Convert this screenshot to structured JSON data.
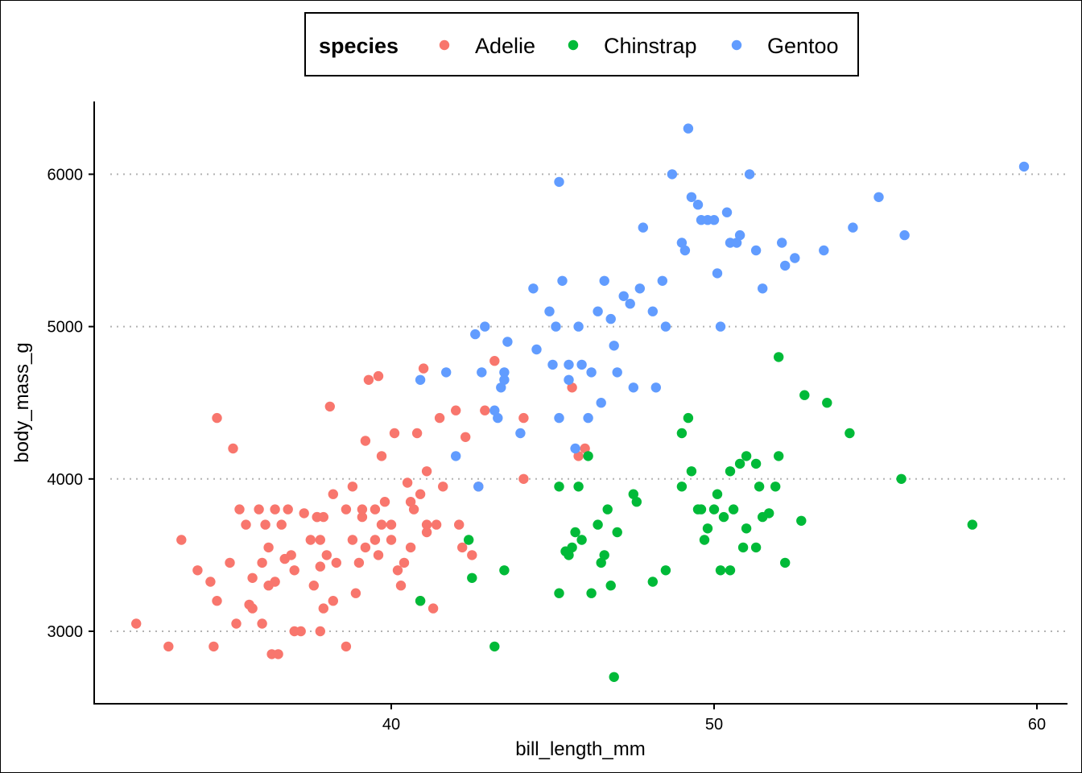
{
  "chart_data": {
    "type": "scatter",
    "xlabel": "bill_length_mm",
    "ylabel": "body_mass_g",
    "xlim": [
      31.6,
      60.7
    ],
    "ylim": [
      2570,
      6480
    ],
    "xticks": [
      40,
      50,
      60
    ],
    "yticks": [
      3000,
      4000,
      5000,
      6000
    ],
    "grid": "horizontal dotted at y ticks",
    "legend": {
      "title": "species",
      "placement": "top"
    },
    "series": [
      {
        "name": "Adelie",
        "color": "#F8766D",
        "points": [
          [
            32.1,
            3050
          ],
          [
            33.1,
            2900
          ],
          [
            33.5,
            3600
          ],
          [
            34.0,
            3400
          ],
          [
            34.4,
            3325
          ],
          [
            34.5,
            2900
          ],
          [
            34.6,
            4400
          ],
          [
            34.6,
            3200
          ],
          [
            35.0,
            3450
          ],
          [
            35.1,
            4200
          ],
          [
            35.2,
            3050
          ],
          [
            35.3,
            3800
          ],
          [
            35.5,
            3700
          ],
          [
            35.6,
            3175
          ],
          [
            35.7,
            3350
          ],
          [
            35.7,
            3150
          ],
          [
            35.9,
            3800
          ],
          [
            36.0,
            3450
          ],
          [
            36.0,
            3050
          ],
          [
            36.1,
            3700
          ],
          [
            36.2,
            3300
          ],
          [
            36.2,
            3550
          ],
          [
            36.3,
            2850
          ],
          [
            36.4,
            3800
          ],
          [
            36.4,
            3325
          ],
          [
            36.5,
            2850
          ],
          [
            36.6,
            3700
          ],
          [
            36.7,
            3475
          ],
          [
            36.8,
            3800
          ],
          [
            36.9,
            3500
          ],
          [
            37.0,
            3000
          ],
          [
            37.0,
            3400
          ],
          [
            37.2,
            3000
          ],
          [
            37.3,
            3775
          ],
          [
            37.5,
            3600
          ],
          [
            37.6,
            3300
          ],
          [
            37.7,
            3750
          ],
          [
            37.8,
            3000
          ],
          [
            37.8,
            3600
          ],
          [
            37.8,
            3425
          ],
          [
            37.9,
            3150
          ],
          [
            37.9,
            3750
          ],
          [
            38.0,
            3500
          ],
          [
            38.1,
            4475
          ],
          [
            38.2,
            3900
          ],
          [
            38.2,
            3200
          ],
          [
            38.3,
            3450
          ],
          [
            38.6,
            2900
          ],
          [
            38.6,
            3800
          ],
          [
            38.8,
            3950
          ],
          [
            38.8,
            3600
          ],
          [
            38.9,
            3250
          ],
          [
            39.0,
            3450
          ],
          [
            39.1,
            3750
          ],
          [
            39.2,
            4250
          ],
          [
            39.2,
            3550
          ],
          [
            39.5,
            3800
          ],
          [
            39.6,
            3500
          ],
          [
            39.6,
            4675
          ],
          [
            39.7,
            3700
          ],
          [
            39.7,
            4150
          ],
          [
            39.8,
            3850
          ],
          [
            40.0,
            3700
          ],
          [
            40.1,
            4300
          ],
          [
            40.2,
            3400
          ],
          [
            40.3,
            3300
          ],
          [
            40.4,
            3450
          ],
          [
            40.5,
            3975
          ],
          [
            40.6,
            3850
          ],
          [
            40.7,
            3800
          ],
          [
            40.8,
            4300
          ],
          [
            40.9,
            3900
          ],
          [
            40.9,
            3200
          ],
          [
            41.0,
            4725
          ],
          [
            41.1,
            4050
          ],
          [
            41.1,
            3700
          ],
          [
            41.3,
            3150
          ],
          [
            41.4,
            3700
          ],
          [
            41.5,
            4400
          ],
          [
            41.6,
            3950
          ],
          [
            42.0,
            4450
          ],
          [
            42.1,
            3700
          ],
          [
            42.2,
            3550
          ],
          [
            42.3,
            4275
          ],
          [
            42.5,
            3500
          ],
          [
            42.7,
            3950
          ],
          [
            42.9,
            4450
          ],
          [
            43.2,
            4775
          ],
          [
            44.1,
            4000
          ],
          [
            44.1,
            4400
          ],
          [
            45.6,
            4600
          ],
          [
            45.8,
            4150
          ],
          [
            46.0,
            4200
          ],
          [
            39.1,
            3800
          ],
          [
            39.3,
            4650
          ],
          [
            40.0,
            3600
          ],
          [
            41.1,
            3650
          ],
          [
            37.7,
            3750
          ],
          [
            39.5,
            3600
          ],
          [
            40.6,
            3550
          ]
        ]
      },
      {
        "name": "Chinstrap",
        "color": "#00BA38",
        "points": [
          [
            40.9,
            3200
          ],
          [
            42.4,
            3600
          ],
          [
            42.5,
            3350
          ],
          [
            43.2,
            2900
          ],
          [
            43.5,
            3400
          ],
          [
            45.2,
            3950
          ],
          [
            45.2,
            3250
          ],
          [
            45.4,
            3525
          ],
          [
            45.5,
            3500
          ],
          [
            45.6,
            3550
          ],
          [
            45.7,
            3650
          ],
          [
            45.9,
            3600
          ],
          [
            46.1,
            4150
          ],
          [
            46.2,
            3250
          ],
          [
            46.4,
            3700
          ],
          [
            46.5,
            3450
          ],
          [
            46.6,
            3500
          ],
          [
            46.7,
            3800
          ],
          [
            46.8,
            3300
          ],
          [
            46.9,
            2700
          ],
          [
            47.0,
            3650
          ],
          [
            47.5,
            3900
          ],
          [
            47.6,
            3850
          ],
          [
            48.1,
            3325
          ],
          [
            48.5,
            3400
          ],
          [
            49.0,
            3950
          ],
          [
            49.0,
            4300
          ],
          [
            49.2,
            4400
          ],
          [
            49.3,
            4050
          ],
          [
            49.5,
            3800
          ],
          [
            49.6,
            3800
          ],
          [
            49.7,
            3600
          ],
          [
            49.8,
            3675
          ],
          [
            50.1,
            3900
          ],
          [
            50.2,
            3400
          ],
          [
            50.3,
            3750
          ],
          [
            50.5,
            3400
          ],
          [
            50.5,
            4050
          ],
          [
            50.6,
            3800
          ],
          [
            50.8,
            4100
          ],
          [
            51.0,
            3675
          ],
          [
            51.3,
            3550
          ],
          [
            51.3,
            4100
          ],
          [
            51.4,
            3950
          ],
          [
            51.5,
            3750
          ],
          [
            51.7,
            3775
          ],
          [
            51.9,
            3950
          ],
          [
            52.0,
            4800
          ],
          [
            52.0,
            4150
          ],
          [
            52.2,
            3450
          ],
          [
            52.7,
            3725
          ],
          [
            52.8,
            4550
          ],
          [
            53.5,
            4500
          ],
          [
            54.2,
            4300
          ],
          [
            55.8,
            4000
          ],
          [
            58.0,
            3700
          ],
          [
            50.9,
            3550
          ],
          [
            45.8,
            3950
          ],
          [
            50.0,
            3800
          ],
          [
            51.0,
            4150
          ]
        ]
      },
      {
        "name": "Gentoo",
        "color": "#619CFF",
        "points": [
          [
            40.9,
            4650
          ],
          [
            41.7,
            4700
          ],
          [
            42.0,
            4150
          ],
          [
            42.6,
            4950
          ],
          [
            42.7,
            3950
          ],
          [
            42.8,
            4700
          ],
          [
            42.9,
            5000
          ],
          [
            43.2,
            4450
          ],
          [
            43.3,
            4400
          ],
          [
            43.4,
            4600
          ],
          [
            43.5,
            4650
          ],
          [
            43.5,
            4700
          ],
          [
            43.6,
            4900
          ],
          [
            44.0,
            4300
          ],
          [
            44.4,
            5250
          ],
          [
            44.5,
            4850
          ],
          [
            44.9,
            5100
          ],
          [
            45.0,
            4750
          ],
          [
            45.1,
            5000
          ],
          [
            45.2,
            4400
          ],
          [
            45.2,
            5950
          ],
          [
            45.3,
            5300
          ],
          [
            45.5,
            4650
          ],
          [
            45.5,
            4750
          ],
          [
            45.7,
            4200
          ],
          [
            45.8,
            5000
          ],
          [
            45.9,
            4750
          ],
          [
            46.1,
            4400
          ],
          [
            46.2,
            4700
          ],
          [
            46.4,
            5100
          ],
          [
            46.5,
            4500
          ],
          [
            46.6,
            5300
          ],
          [
            46.8,
            5050
          ],
          [
            47.0,
            4700
          ],
          [
            47.2,
            5200
          ],
          [
            47.4,
            5150
          ],
          [
            47.5,
            4600
          ],
          [
            47.7,
            5250
          ],
          [
            47.8,
            5650
          ],
          [
            48.1,
            5100
          ],
          [
            48.2,
            4600
          ],
          [
            48.4,
            5300
          ],
          [
            48.5,
            5000
          ],
          [
            48.7,
            6000
          ],
          [
            49.0,
            5550
          ],
          [
            49.1,
            5500
          ],
          [
            49.2,
            6300
          ],
          [
            49.3,
            5850
          ],
          [
            49.5,
            5800
          ],
          [
            49.6,
            5700
          ],
          [
            49.8,
            5700
          ],
          [
            50.0,
            5700
          ],
          [
            50.1,
            5350
          ],
          [
            50.2,
            5000
          ],
          [
            50.4,
            5750
          ],
          [
            50.5,
            5550
          ],
          [
            50.7,
            5550
          ],
          [
            50.8,
            5600
          ],
          [
            51.1,
            6000
          ],
          [
            51.3,
            5500
          ],
          [
            51.5,
            5250
          ],
          [
            52.1,
            5550
          ],
          [
            52.2,
            5400
          ],
          [
            52.5,
            5450
          ],
          [
            53.4,
            5500
          ],
          [
            54.3,
            5650
          ],
          [
            55.1,
            5850
          ],
          [
            55.9,
            5600
          ],
          [
            59.6,
            6050
          ],
          [
            46.9,
            4875
          ]
        ]
      }
    ]
  }
}
